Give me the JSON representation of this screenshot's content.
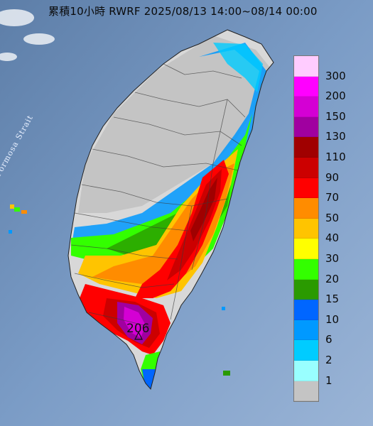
{
  "title": "累積10小時 RWRF 2025/08/13 14:00~08/14 00:00",
  "strait_label": "Formosa Strait",
  "max_value": "206",
  "legend": {
    "colors": [
      "#ffccff",
      "#ff00ff",
      "#d400d4",
      "#a000a0",
      "#a00000",
      "#cc0000",
      "#ff0000",
      "#ff8c00",
      "#ffc400",
      "#ffff00",
      "#33ff00",
      "#2a9a00",
      "#0066ff",
      "#0099ff",
      "#00ccff",
      "#99ffff",
      "#c4c4c4"
    ],
    "labels": [
      "300",
      "200",
      "150",
      "130",
      "110",
      "90",
      "70",
      "50",
      "40",
      "30",
      "20",
      "15",
      "10",
      "6",
      "2",
      "1"
    ]
  }
}
